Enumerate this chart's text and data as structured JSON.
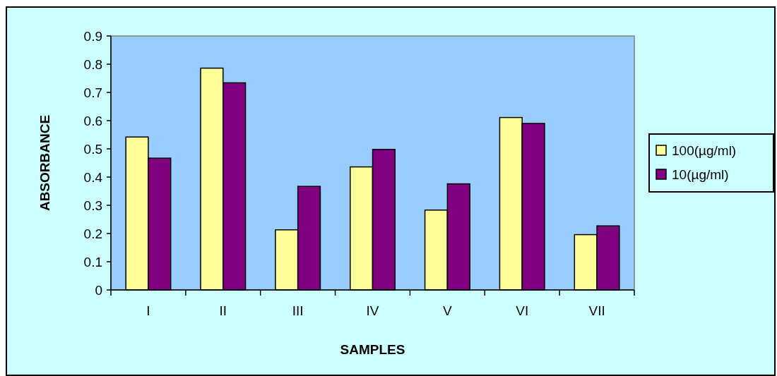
{
  "chart_data": {
    "type": "bar",
    "xlabel": "SAMPLES",
    "ylabel": "ABSORBANCE",
    "categories": [
      "I",
      "II",
      "III",
      "IV",
      "V",
      "VI",
      "VII"
    ],
    "series": [
      {
        "name": "100(µg/ml)",
        "color": "#ffff99",
        "values": [
          0.542,
          0.786,
          0.213,
          0.436,
          0.283,
          0.611,
          0.196
        ]
      },
      {
        "name": "10(µg/ml)",
        "color": "#800080",
        "values": [
          0.467,
          0.734,
          0.367,
          0.498,
          0.376,
          0.59,
          0.227
        ]
      }
    ],
    "ylim": [
      0,
      0.9
    ],
    "yticks": [
      0,
      0.1,
      0.2,
      0.3,
      0.4,
      0.5,
      0.6,
      0.7,
      0.8,
      0.9
    ],
    "grid": false,
    "legend": "right"
  }
}
